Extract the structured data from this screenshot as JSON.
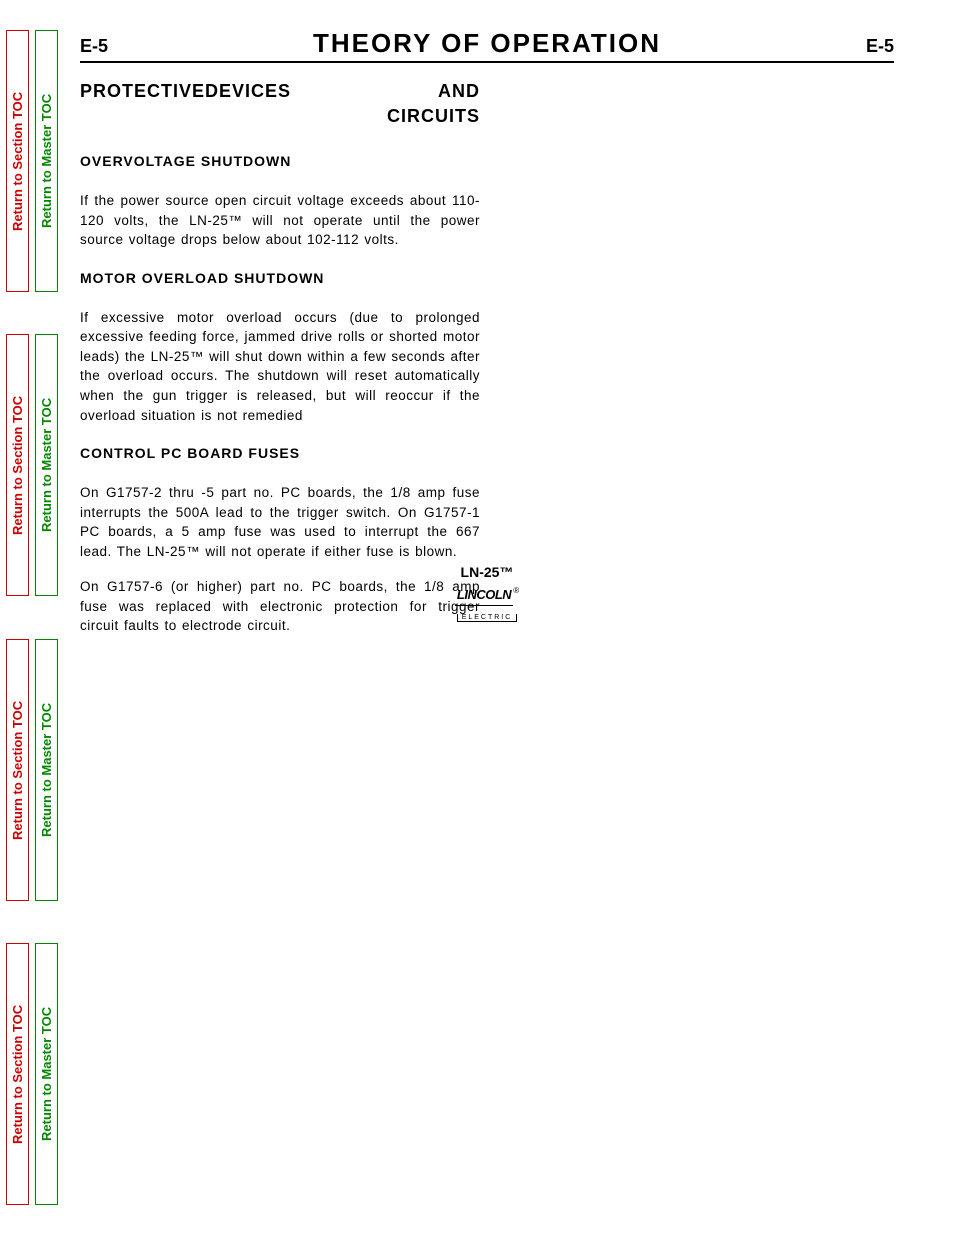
{
  "sideTabs": {
    "section": "Return to Section TOC",
    "master": "Return to Master TOC",
    "colors": {
      "section": "#cc0000",
      "master": "#008800"
    }
  },
  "header": {
    "pageNumLeft": "E-5",
    "title": "THEORY  OF  OPERATION",
    "pageNumRight": "E-5"
  },
  "content": {
    "mainHeading": {
      "line1a": "PROTECTIVE",
      "line1b": "DEVICES",
      "line1c": "AND",
      "line2": "CIRCUITS"
    },
    "sections": [
      {
        "heading": "OVERVOLTAGE  SHUTDOWN",
        "paragraphs": [
          "If the power source open circuit voltage exceeds about 110-120 volts, the LN-25™ will not operate until the power source voltage drops below about 102-112 volts."
        ]
      },
      {
        "heading": "MOTOR  OVERLOAD  SHUTDOWN",
        "paragraphs": [
          "If excessive motor overload occurs (due to prolonged excessive feeding force, jammed drive rolls or shorted motor leads) the LN-25™ will shut down within a few seconds after the overload occurs.  The shutdown will reset automatically when the gun trigger is released, but will reoccur if the overload situation is not remedied"
        ]
      },
      {
        "heading": "CONTROL  PC  BOARD  FUSES",
        "paragraphs": [
          "On G1757-2 thru -5 part no. PC boards, the 1/8 amp fuse interrupts the 500A lead to the trigger switch. On G1757-1 PC boards, a 5 amp fuse was used to interrupt the 667 lead.  The LN-25™ will not operate if either fuse is blown.",
          "On G1757-6 (or higher) part no. PC boards, the 1/8 amp fuse was replaced with electronic protection for trigger circuit faults to electrode circuit."
        ]
      }
    ]
  },
  "footer": {
    "model": "LN-25™",
    "logoTop": "LINCOLN",
    "logoReg": "®",
    "logoBottom": "ELECTRIC"
  }
}
